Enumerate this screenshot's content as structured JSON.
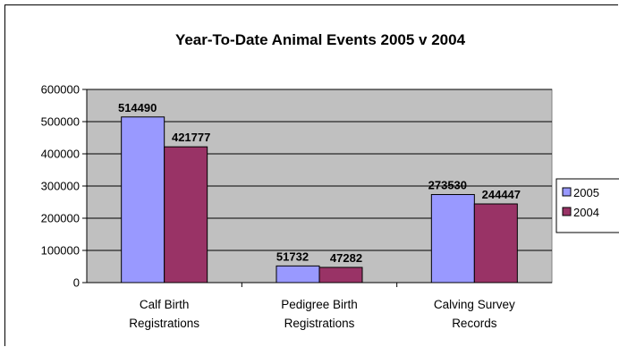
{
  "chart_data": {
    "type": "bar",
    "title": "Year-To-Date Animal Events 2005 v 2004",
    "categories": [
      [
        "Calf Birth",
        "Registrations"
      ],
      [
        "Pedigree Birth",
        "Registrations"
      ],
      [
        "Calving Survey",
        "Records"
      ]
    ],
    "series": [
      {
        "name": "2005",
        "color": "#9999ff",
        "values": [
          514490,
          51732,
          273530
        ]
      },
      {
        "name": "2004",
        "color": "#993366",
        "values": [
          421777,
          47282,
          244447
        ]
      }
    ],
    "ylim": [
      0,
      600000
    ],
    "yticks": [
      0,
      100000,
      200000,
      300000,
      400000,
      500000,
      600000
    ],
    "plot_background": "#c0c0c0",
    "grid": true,
    "legend_position": "right",
    "xlabel": "",
    "ylabel": ""
  }
}
